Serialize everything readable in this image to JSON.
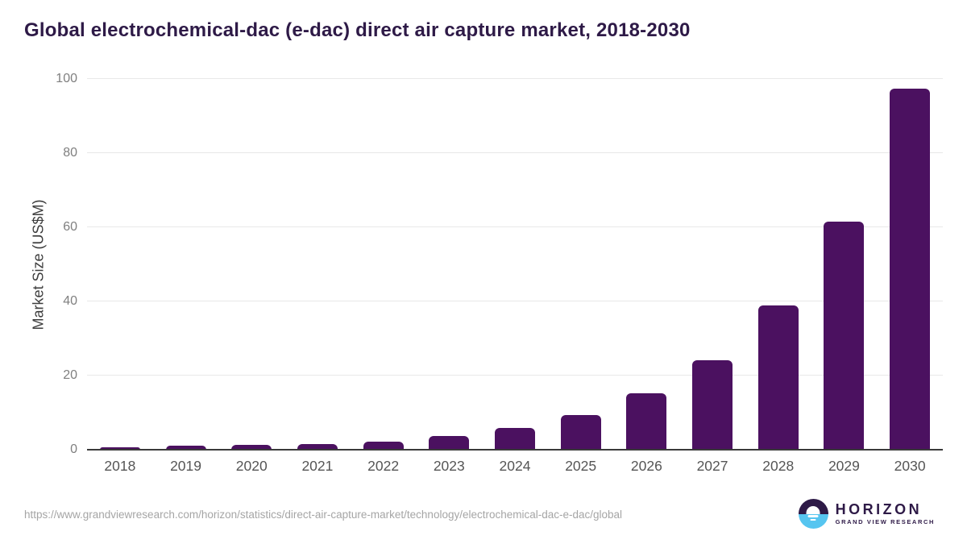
{
  "title": "Global electrochemical-dac (e-dac) direct air capture market, 2018-2030",
  "chart_data": {
    "type": "bar",
    "categories": [
      "2018",
      "2019",
      "2020",
      "2021",
      "2022",
      "2023",
      "2024",
      "2025",
      "2026",
      "2027",
      "2028",
      "2029",
      "2030"
    ],
    "values": [
      0.6,
      1.0,
      1.3,
      1.5,
      2.2,
      3.8,
      5.9,
      9.4,
      15.2,
      24.2,
      38.9,
      61.5,
      97.3
    ],
    "title": "Global electrochemical-dac (e-dac) direct air capture market, 2018-2030",
    "xlabel": "",
    "ylabel": "Market Size (US$M)",
    "ylim": [
      0,
      100
    ],
    "yticks": [
      0,
      20,
      40,
      60,
      80,
      100
    ],
    "grid": true,
    "legend_position": "none",
    "bar_color": "#4b1160"
  },
  "colors": {
    "title": "#2e1a47",
    "bar": "#4b1160",
    "gridline": "#e8e8e8",
    "axis_line": "#3a3a3a",
    "ytick_label": "#7f7f7f",
    "xtick_label": "#555555",
    "source_text": "#a5a5a5",
    "logo_dark": "#2e1a47",
    "logo_blue": "#56c5f0"
  },
  "footer": {
    "source_url": "https://www.grandviewresearch.com/horizon/statistics/direct-air-capture-market/technology/electrochemical-dac-e-dac/global",
    "logo": {
      "name": "HORIZON",
      "subtitle": "GRAND VIEW RESEARCH"
    }
  }
}
